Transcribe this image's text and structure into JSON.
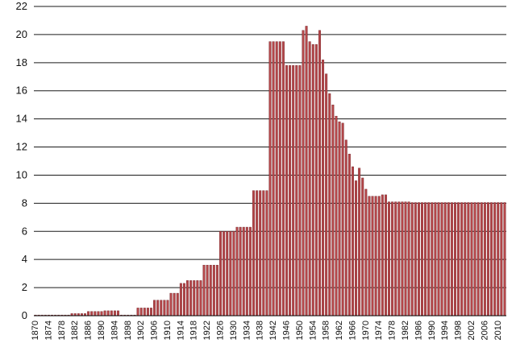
{
  "chart_data": {
    "type": "bar",
    "title": "",
    "xlabel": "",
    "ylabel": "",
    "ylim": [
      0,
      22
    ],
    "yticks": [
      0,
      2,
      4,
      6,
      8,
      10,
      12,
      14,
      16,
      18,
      20,
      22
    ],
    "grid": "horizontal",
    "legend": "none",
    "bar_color": "#b5474a",
    "bar_edge_color": "#6e1d22",
    "x_tick_labels": [
      "1870",
      "1874",
      "1878",
      "1882",
      "1886",
      "1890",
      "1894",
      "1898",
      "1902",
      "1906",
      "1910",
      "1914",
      "1918",
      "1922",
      "1926",
      "1930",
      "1934",
      "1938",
      "1942",
      "1946",
      "1950",
      "1954",
      "1958",
      "1962",
      "1966",
      "1970",
      "1974",
      "1978",
      "1982",
      "1986",
      "1990",
      "1994",
      "1998",
      "2002",
      "2006",
      "2010"
    ],
    "x": [
      1870,
      1871,
      1872,
      1873,
      1874,
      1875,
      1876,
      1877,
      1878,
      1879,
      1880,
      1881,
      1882,
      1883,
      1884,
      1885,
      1886,
      1887,
      1888,
      1889,
      1890,
      1891,
      1892,
      1893,
      1894,
      1895,
      1896,
      1897,
      1898,
      1899,
      1900,
      1901,
      1902,
      1903,
      1904,
      1905,
      1906,
      1907,
      1908,
      1909,
      1910,
      1911,
      1912,
      1913,
      1914,
      1915,
      1916,
      1917,
      1918,
      1919,
      1920,
      1921,
      1922,
      1923,
      1924,
      1925,
      1926,
      1927,
      1928,
      1929,
      1930,
      1931,
      1932,
      1933,
      1934,
      1935,
      1936,
      1937,
      1938,
      1939,
      1940,
      1941,
      1942,
      1943,
      1944,
      1945,
      1946,
      1947,
      1948,
      1949,
      1950,
      1951,
      1952,
      1953,
      1954,
      1955,
      1956,
      1957,
      1958,
      1959,
      1960,
      1961,
      1962,
      1963,
      1964,
      1965,
      1966,
      1967,
      1968,
      1969,
      1970,
      1971,
      1972,
      1973,
      1974,
      1975,
      1976,
      1977,
      1978,
      1979,
      1980,
      1981,
      1982,
      1983,
      1984,
      1985,
      1986,
      1987,
      1988,
      1989,
      1990,
      1991,
      1992,
      1993,
      1994,
      1995,
      1996,
      1997,
      1998,
      1999,
      2000,
      2001,
      2002,
      2003,
      2004,
      2005,
      2006,
      2007,
      2008,
      2009,
      2010,
      2011,
      2012
    ],
    "values": [
      0.05,
      0.05,
      0.05,
      0.05,
      0.05,
      0.05,
      0.05,
      0.05,
      0.05,
      0.05,
      0.05,
      0.15,
      0.15,
      0.15,
      0.15,
      0.15,
      0.3,
      0.3,
      0.3,
      0.3,
      0.3,
      0.35,
      0.35,
      0.35,
      0.35,
      0.35,
      0.05,
      0.05,
      0.05,
      0.05,
      0.05,
      0.55,
      0.55,
      0.55,
      0.55,
      0.55,
      1.1,
      1.1,
      1.1,
      1.1,
      1.1,
      1.6,
      1.6,
      1.6,
      2.3,
      2.3,
      2.5,
      2.5,
      2.5,
      2.5,
      2.5,
      3.6,
      3.6,
      3.6,
      3.6,
      3.6,
      6.0,
      6.0,
      6.0,
      6.0,
      6.0,
      6.3,
      6.3,
      6.3,
      6.3,
      6.3,
      8.9,
      8.9,
      8.9,
      8.9,
      8.9,
      19.5,
      19.5,
      19.5,
      19.5,
      19.5,
      17.8,
      17.8,
      17.8,
      17.8,
      17.8,
      20.3,
      20.6,
      19.5,
      19.3,
      19.3,
      20.3,
      18.2,
      17.2,
      15.8,
      15.0,
      14.2,
      13.8,
      13.7,
      12.5,
      11.5,
      10.6,
      9.6,
      10.5,
      9.8,
      9.0,
      8.5,
      8.5,
      8.5,
      8.5,
      8.6,
      8.6,
      8.1,
      8.1,
      8.1,
      8.1,
      8.1,
      8.1,
      8.1,
      8.05,
      8.05,
      8.05,
      8.05,
      8.05,
      8.05,
      8.05,
      8.05,
      8.05,
      8.05,
      8.05,
      8.05,
      8.05,
      8.05,
      8.05,
      8.05,
      8.05,
      8.05,
      8.05,
      8.05,
      8.05,
      8.05,
      8.05,
      8.05,
      8.05,
      8.05,
      8.05,
      8.05,
      8.05
    ]
  }
}
